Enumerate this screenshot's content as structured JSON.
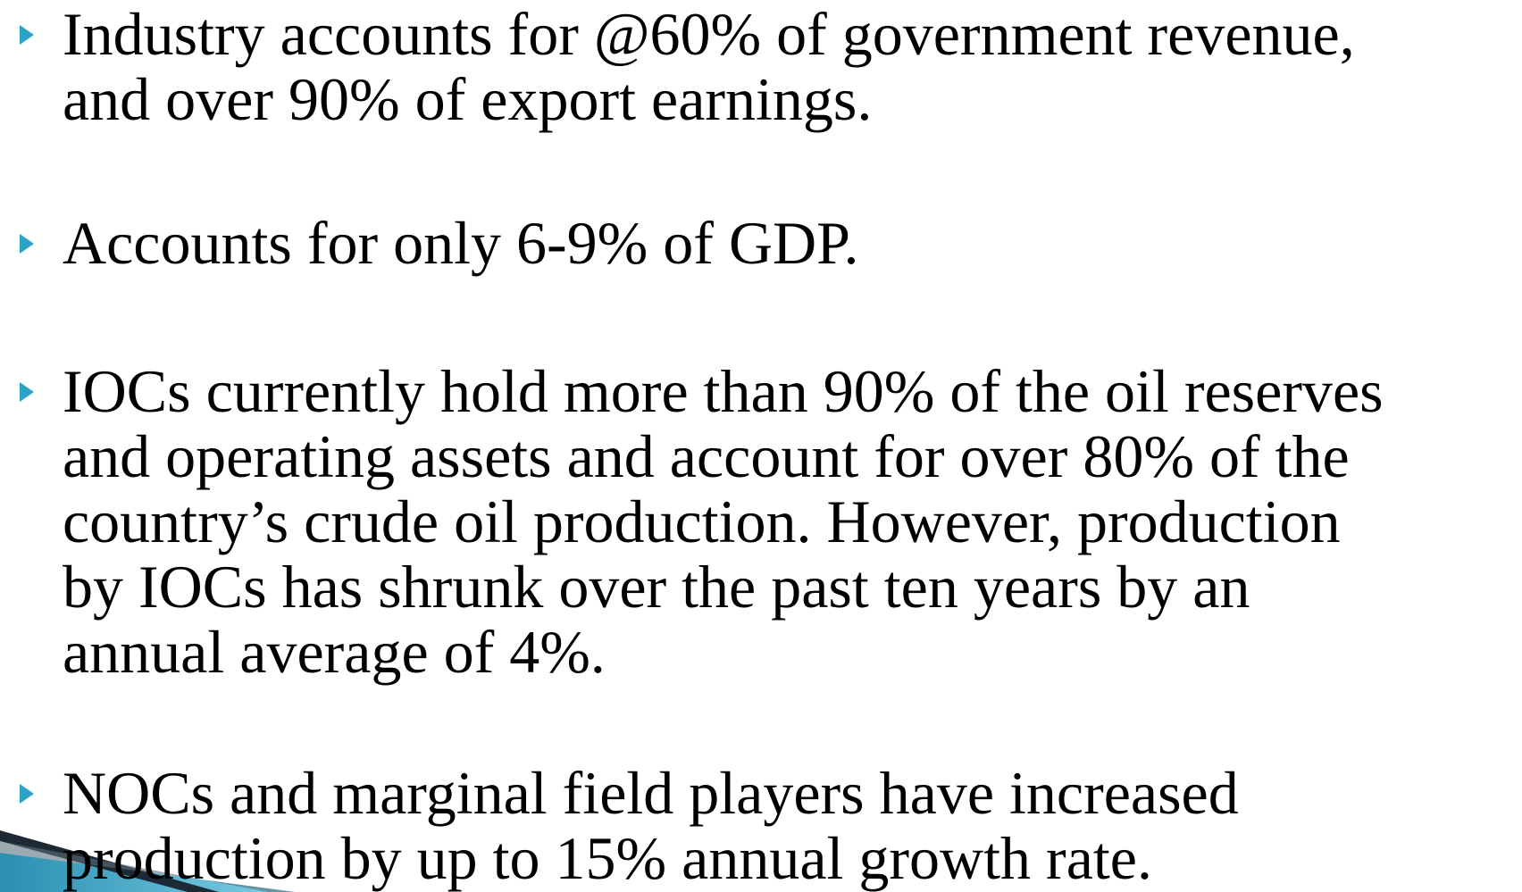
{
  "bullets": [
    {
      "lines": [
        "Industry accounts for @60% of government revenue,",
        "and over 90% of export earnings."
      ]
    },
    {
      "lines": [
        "Accounts for only 6-9% of GDP."
      ]
    },
    {
      "lines": [
        "IOCs currently hold more than 90% of the oil reserves",
        "and operating assets and account for over 80% of the",
        "country’s crude oil production. However, production",
        "by IOCs has shrunk over the past ten years by an",
        "annual average of 4%."
      ]
    },
    {
      "lines": [
        "NOCs and marginal field players have increased",
        "production by up to 15% annual growth rate."
      ]
    }
  ]
}
